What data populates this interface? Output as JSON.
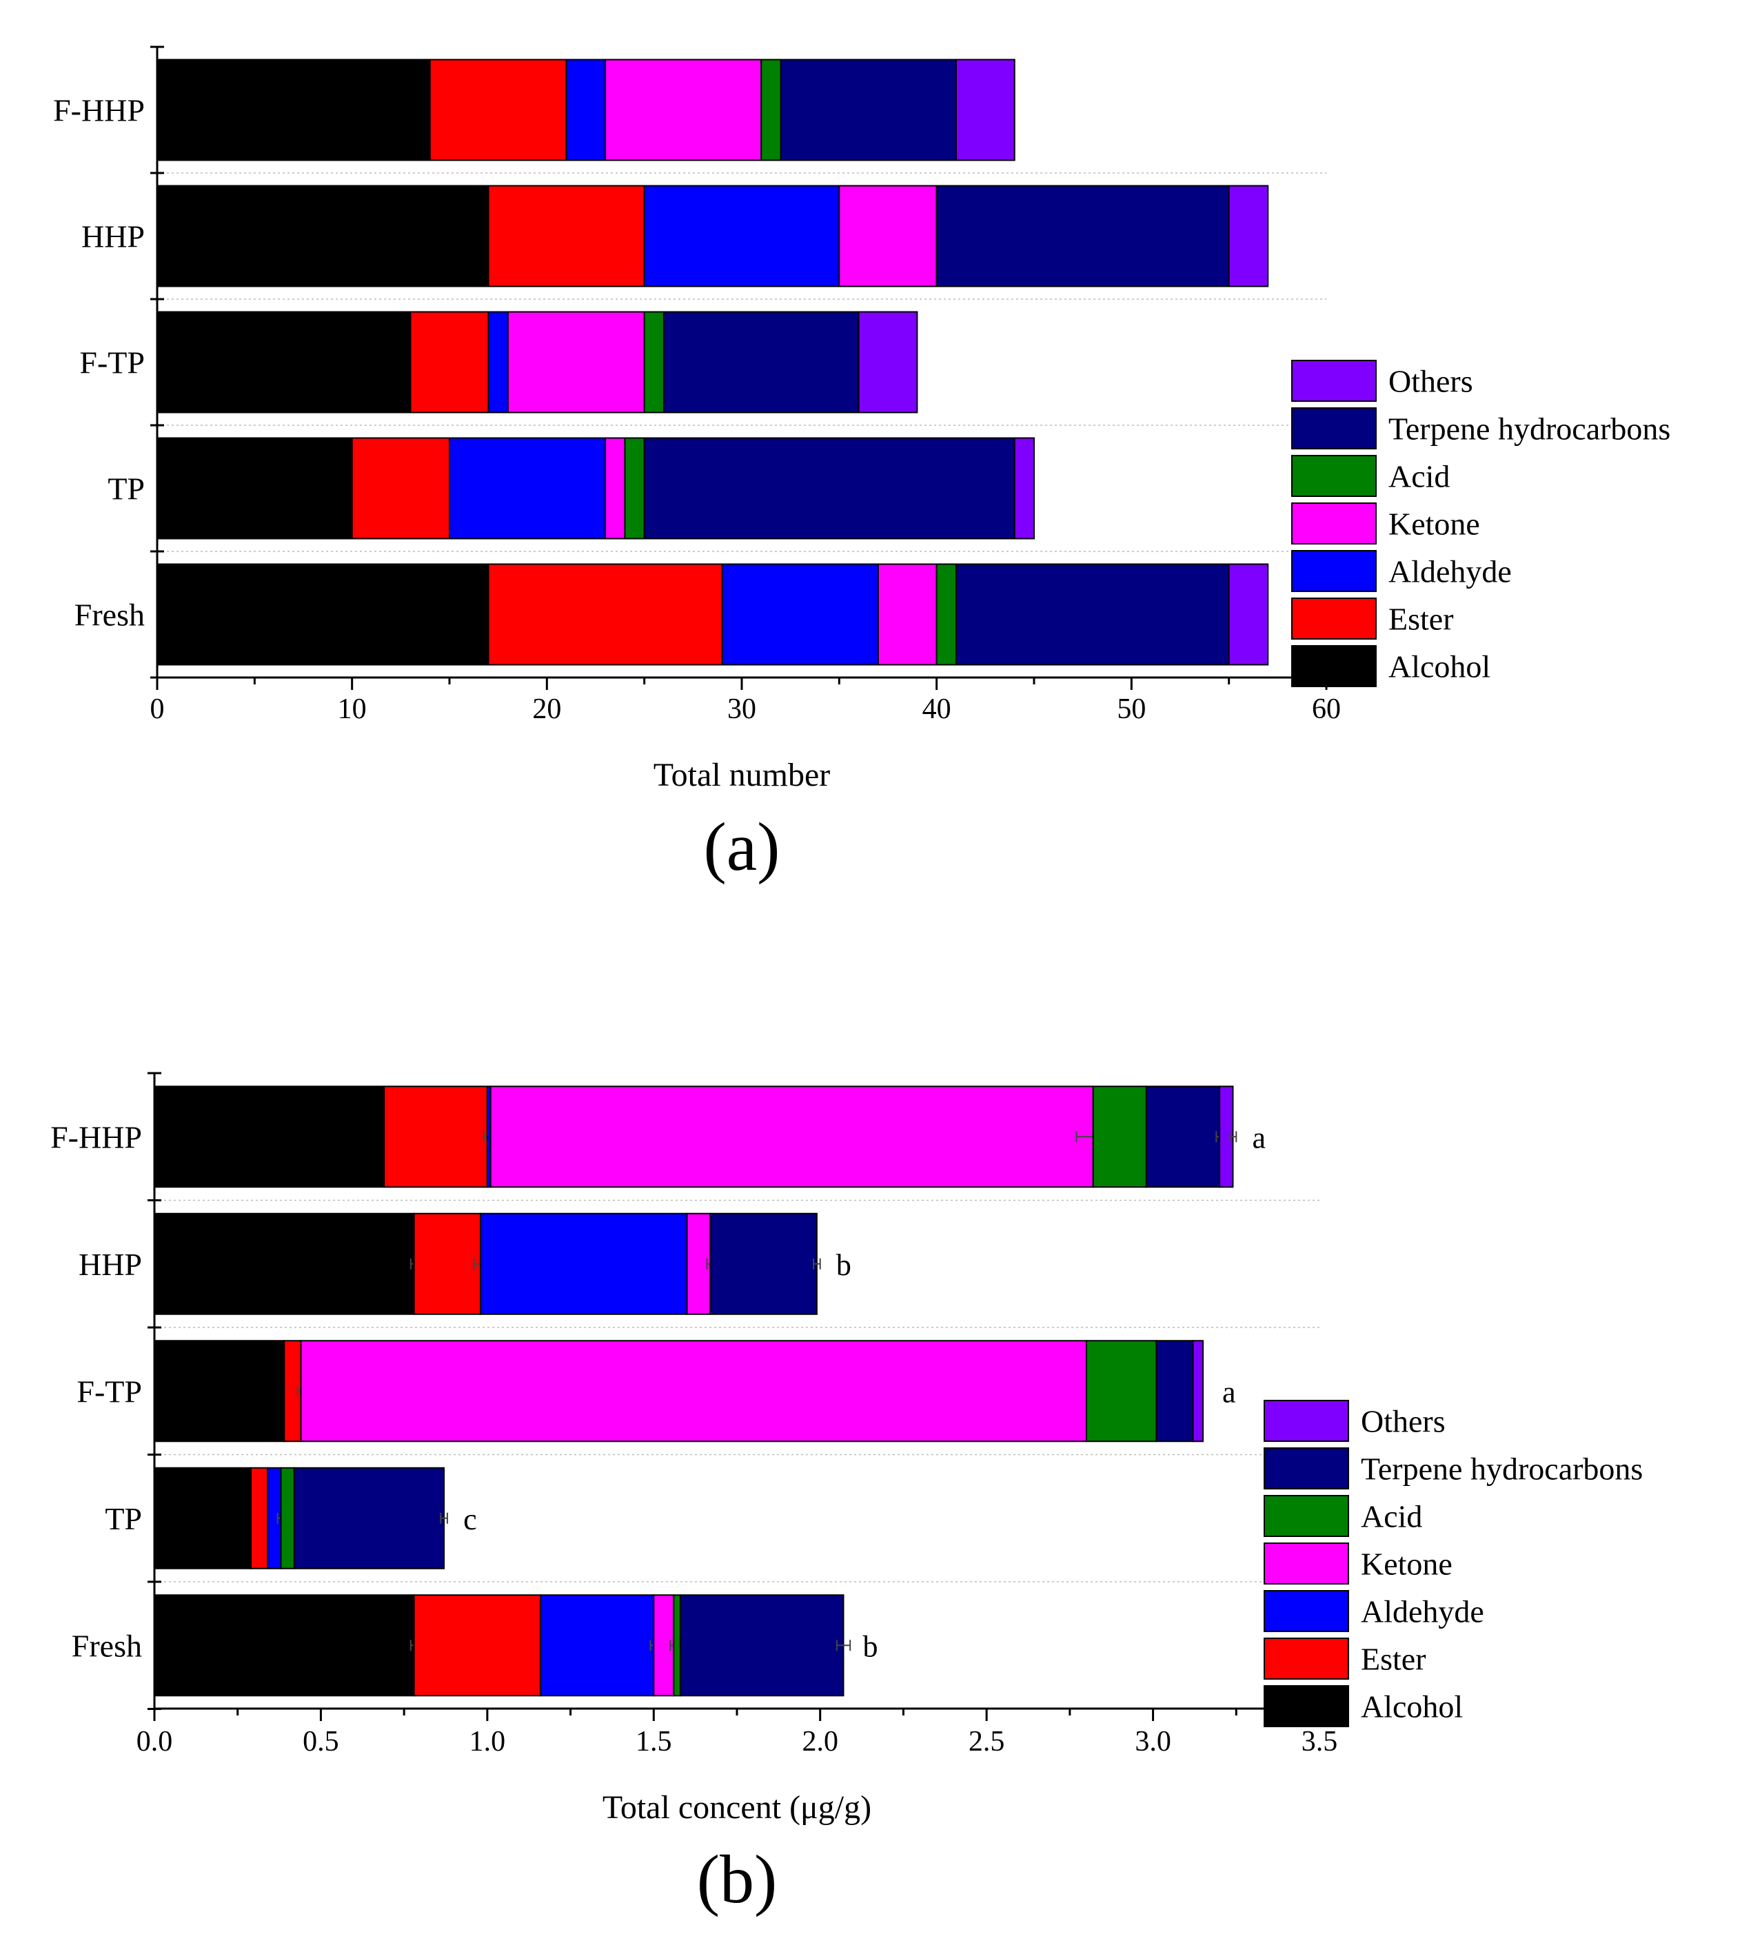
{
  "chart_data": [
    {
      "type": "bar",
      "orientation": "horizontal",
      "stacked": true,
      "panel_label": "(a)",
      "xlabel": "Total number",
      "xlim": [
        0,
        60
      ],
      "xticks": [
        "0",
        "10",
        "20",
        "30",
        "40",
        "50",
        "60"
      ],
      "grid": "horizontal dotted separators",
      "categories": [
        "F-HHP",
        "HHP",
        "F-TP",
        "TP",
        "Fresh"
      ],
      "legend": {
        "position": "right",
        "entries": [
          "Others",
          "Terpene hydrocarbons",
          "Acid",
          "Ketone",
          "Aldehyde",
          "Ester",
          "Alcohol"
        ]
      },
      "series": [
        {
          "name": "Alcohol",
          "color": "#000000",
          "values": [
            14,
            17,
            13,
            10,
            17
          ]
        },
        {
          "name": "Ester",
          "color": "#ff0000",
          "values": [
            7,
            8,
            4,
            5,
            12
          ]
        },
        {
          "name": "Aldehyde",
          "color": "#0000ff",
          "values": [
            2,
            10,
            1,
            8,
            8
          ]
        },
        {
          "name": "Ketone",
          "color": "#ff00ff",
          "values": [
            8,
            5,
            7,
            1,
            3
          ]
        },
        {
          "name": "Acid",
          "color": "#008000",
          "values": [
            1,
            0,
            1,
            1,
            1
          ]
        },
        {
          "name": "Terpene hydrocarbons",
          "color": "#000080",
          "values": [
            9,
            15,
            10,
            19,
            14
          ]
        },
        {
          "name": "Others",
          "color": "#8000ff",
          "values": [
            3,
            2,
            3,
            1,
            2
          ]
        }
      ]
    },
    {
      "type": "bar",
      "orientation": "horizontal",
      "stacked": true,
      "panel_label": "(b)",
      "xlabel": "Total concent (μg/g)",
      "xlim": [
        0,
        3.5
      ],
      "xticks": [
        "0.0",
        "0.5",
        "1.0",
        "1.5",
        "2.0",
        "2.5",
        "3.0",
        "3.5"
      ],
      "grid": "horizontal dotted separators",
      "categories": [
        "F-HHP",
        "HHP",
        "F-TP",
        "TP",
        "Fresh"
      ],
      "significance": [
        "a",
        "b",
        "a",
        "c",
        "b"
      ],
      "legend": {
        "position": "right",
        "entries": [
          "Others",
          "Terpene hydrocarbons",
          "Acid",
          "Ketone",
          "Aldehyde",
          "Ester",
          "Alcohol"
        ]
      },
      "series": [
        {
          "name": "Alcohol",
          "color": "#000000",
          "values": [
            0.69,
            0.78,
            0.39,
            0.29,
            0.78
          ],
          "error": [
            0.0,
            0.01,
            0.0,
            0.0,
            0.01
          ]
        },
        {
          "name": "Ester",
          "color": "#ff0000",
          "values": [
            0.31,
            0.2,
            0.05,
            0.05,
            0.38
          ],
          "error": [
            0.01,
            0.02,
            0.01,
            0.0,
            0.0
          ]
        },
        {
          "name": "Aldehyde",
          "color": "#0000ff",
          "values": [
            0.01,
            0.62,
            0.0,
            0.04,
            0.34
          ],
          "error": [
            0.0,
            0.0,
            0.0,
            0.01,
            0.01
          ]
        },
        {
          "name": "Ketone",
          "color": "#ff00ff",
          "values": [
            1.81,
            0.07,
            2.36,
            0.0,
            0.06
          ],
          "error": [
            0.05,
            0.01,
            0.0,
            0.0,
            0.01
          ]
        },
        {
          "name": "Acid",
          "color": "#008000",
          "values": [
            0.16,
            0.0,
            0.21,
            0.04,
            0.02
          ],
          "error": [
            0.0,
            0.0,
            0.0,
            0.0,
            0.0
          ]
        },
        {
          "name": "Terpene hydrocarbons",
          "color": "#000080",
          "values": [
            0.22,
            0.32,
            0.11,
            0.45,
            0.49
          ],
          "error": [
            0.01,
            0.01,
            0.0,
            0.01,
            0.02
          ]
        },
        {
          "name": "Others",
          "color": "#8000ff",
          "values": [
            0.04,
            0.0,
            0.03,
            0.0,
            0.0
          ],
          "error": [
            0.01,
            0.0,
            0.0,
            0.0,
            0.0
          ]
        }
      ]
    }
  ]
}
